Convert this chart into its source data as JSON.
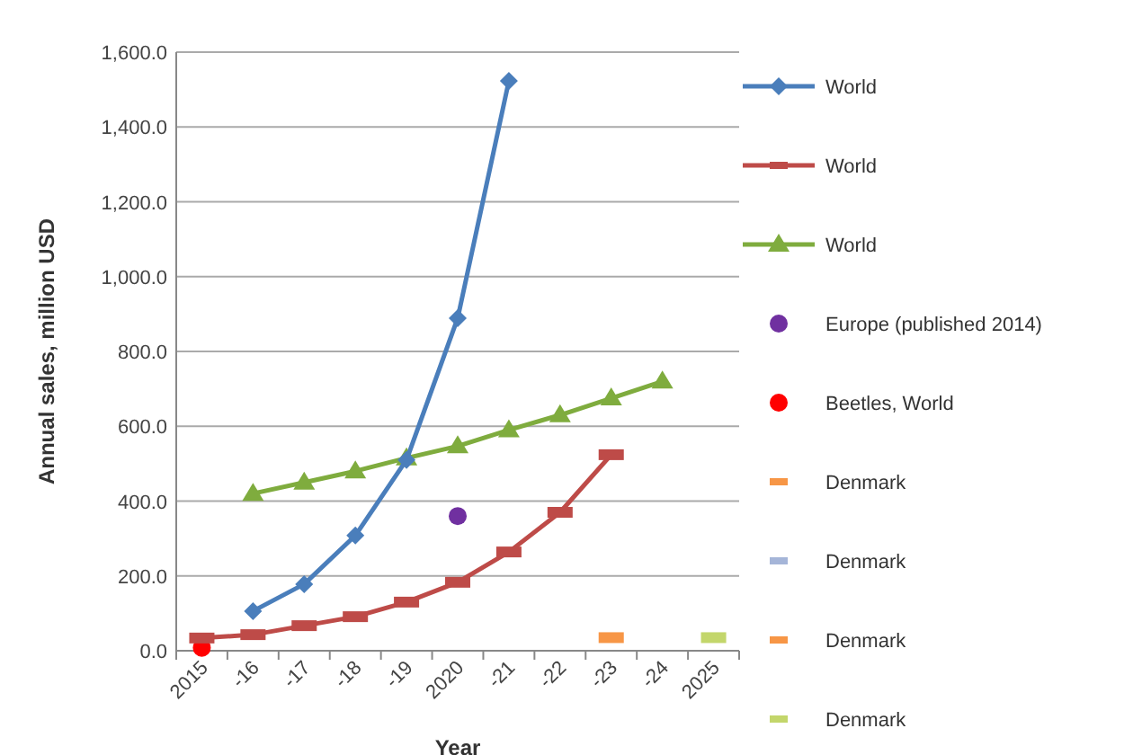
{
  "chart_data": {
    "type": "line",
    "xlabel": "Year",
    "ylabel": "Annual sales, million USD",
    "categories": [
      "2015",
      "-16",
      "-17",
      "-18",
      "-19",
      "2020",
      "-21",
      "-22",
      "-23",
      "-24",
      "2025"
    ],
    "ylim": [
      0,
      1600
    ],
    "yticks": [
      {
        "value": 0,
        "label": "0.0"
      },
      {
        "value": 200,
        "label": "200.0"
      },
      {
        "value": 400,
        "label": "400.0"
      },
      {
        "value": 600,
        "label": "600.0"
      },
      {
        "value": 800,
        "label": "800.0"
      },
      {
        "value": 1000,
        "label": "1,000.0"
      },
      {
        "value": 1200,
        "label": "1,200.0"
      },
      {
        "value": 1400,
        "label": "1,400.0"
      },
      {
        "value": 1600,
        "label": "1,600.0"
      }
    ],
    "grid": "y",
    "legend": "right",
    "series": [
      {
        "name": "World",
        "color": "#4a7ebb",
        "marker": "diamond",
        "values": [
          null,
          106,
          178,
          308,
          510,
          889,
          1523,
          null,
          null,
          null,
          null
        ]
      },
      {
        "name": "World",
        "color": "#be4b48",
        "marker": "square",
        "values": [
          34,
          43,
          67,
          91,
          130,
          183,
          264,
          370,
          524,
          null,
          null
        ]
      },
      {
        "name": "World",
        "color": "#7fac3e",
        "marker": "triangle",
        "values": [
          null,
          420,
          450,
          480,
          515,
          547,
          590,
          630,
          675,
          720,
          null
        ]
      },
      {
        "name": "Europe (published 2014)",
        "color": "#7030a0",
        "type": "scatter",
        "marker": "circle",
        "values": [
          null,
          null,
          null,
          null,
          null,
          360,
          null,
          null,
          null,
          null,
          null
        ]
      },
      {
        "name": "Beetles, World",
        "color": "#ff0000",
        "type": "scatter",
        "marker": "circle",
        "values": [
          8,
          null,
          null,
          null,
          null,
          null,
          null,
          null,
          null,
          null,
          null
        ]
      },
      {
        "name": "Denmark",
        "color": "#f79646",
        "type": "scatter",
        "marker": "square",
        "values": [
          null,
          null,
          null,
          null,
          null,
          null,
          null,
          null,
          null,
          null,
          null
        ]
      },
      {
        "name": "Denmark",
        "color": "#a5b5d8",
        "type": "scatter",
        "marker": "square",
        "values": [
          null,
          null,
          null,
          null,
          null,
          null,
          null,
          null,
          null,
          null,
          null
        ]
      },
      {
        "name": "Denmark",
        "color": "#f79646",
        "type": "scatter",
        "marker": "square",
        "values": [
          null,
          null,
          null,
          null,
          null,
          null,
          null,
          null,
          35,
          null,
          null
        ]
      },
      {
        "name": "Denmark",
        "color": "#c3d66b",
        "type": "scatter",
        "marker": "square",
        "values": [
          null,
          null,
          null,
          null,
          null,
          null,
          null,
          null,
          null,
          null,
          35
        ]
      }
    ]
  }
}
